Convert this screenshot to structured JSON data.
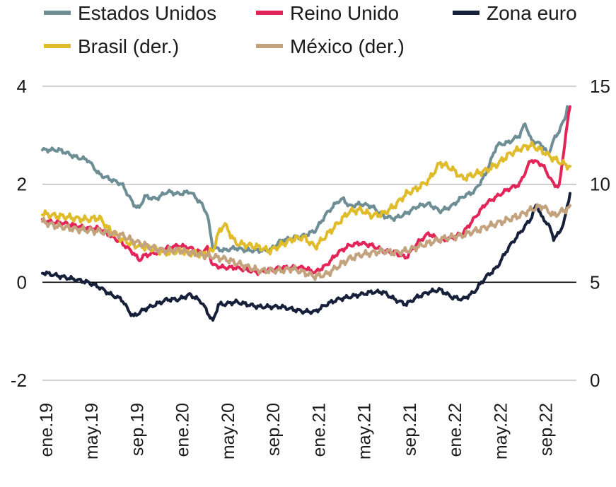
{
  "chart_data": {
    "type": "line",
    "title": "",
    "xlabel": "",
    "ylabel": "",
    "x_ticks": [
      "ene.19",
      "may.19",
      "sep.19",
      "ene.20",
      "may.20",
      "sep.20",
      "ene.21",
      "may.21",
      "sep.21",
      "ene.22",
      "may.22",
      "sep.22"
    ],
    "y_left": {
      "ticks": [
        "-2",
        "0",
        "2",
        "4"
      ],
      "lim": [
        -2,
        4
      ]
    },
    "y_right": {
      "ticks": [
        "0",
        "5",
        "10",
        "15"
      ],
      "lim": [
        0,
        15
      ]
    },
    "grid": true,
    "legend_position": "top",
    "series": [
      {
        "name": "Estados Unidos",
        "color": "#6e8e96",
        "axis": "left",
        "points": [
          [
            0,
            2.7
          ],
          [
            1.5,
            2.7
          ],
          [
            2.5,
            2.6
          ],
          [
            3.0,
            2.55
          ],
          [
            4.0,
            2.5
          ],
          [
            5.0,
            2.2
          ],
          [
            6.0,
            2.1
          ],
          [
            7.0,
            2.0
          ],
          [
            8.0,
            1.6
          ],
          [
            8.5,
            1.5
          ],
          [
            9.0,
            1.75
          ],
          [
            10.0,
            1.7
          ],
          [
            11.0,
            1.85
          ],
          [
            12.0,
            1.8
          ],
          [
            13.0,
            1.85
          ],
          [
            14.0,
            1.6
          ],
          [
            14.5,
            1.4
          ],
          [
            15.0,
            0.7
          ],
          [
            16.0,
            0.65
          ],
          [
            17.0,
            0.7
          ],
          [
            18.0,
            0.65
          ],
          [
            19.0,
            0.65
          ],
          [
            20.0,
            0.65
          ],
          [
            21.0,
            0.85
          ],
          [
            22.0,
            0.9
          ],
          [
            23.0,
            0.95
          ],
          [
            24.0,
            1.05
          ],
          [
            25.0,
            1.4
          ],
          [
            26.0,
            1.65
          ],
          [
            26.5,
            1.7
          ],
          [
            27.0,
            1.55
          ],
          [
            28.0,
            1.6
          ],
          [
            29.0,
            1.55
          ],
          [
            30.0,
            1.35
          ],
          [
            31.0,
            1.3
          ],
          [
            32.0,
            1.4
          ],
          [
            33.0,
            1.55
          ],
          [
            34.0,
            1.6
          ],
          [
            35.0,
            1.45
          ],
          [
            36.0,
            1.55
          ],
          [
            37.0,
            1.75
          ],
          [
            38.0,
            1.85
          ],
          [
            39.0,
            2.2
          ],
          [
            40.0,
            2.8
          ],
          [
            41.0,
            2.85
          ],
          [
            42.0,
            3.0
          ],
          [
            42.5,
            3.25
          ],
          [
            43.0,
            2.9
          ],
          [
            44.0,
            2.8
          ],
          [
            44.5,
            2.6
          ],
          [
            45.0,
            2.9
          ],
          [
            45.5,
            3.1
          ],
          [
            46.0,
            3.35
          ],
          [
            46.3,
            3.7
          ]
        ]
      },
      {
        "name": "Reino Unido",
        "color": "#e32458",
        "axis": "left",
        "points": [
          [
            0,
            1.25
          ],
          [
            2.0,
            1.2
          ],
          [
            3.0,
            1.15
          ],
          [
            4.0,
            1.1
          ],
          [
            5.0,
            1.1
          ],
          [
            6.0,
            0.95
          ],
          [
            7.0,
            0.8
          ],
          [
            8.0,
            0.6
          ],
          [
            8.5,
            0.45
          ],
          [
            9.0,
            0.55
          ],
          [
            10.0,
            0.6
          ],
          [
            11.0,
            0.7
          ],
          [
            12.0,
            0.75
          ],
          [
            13.0,
            0.7
          ],
          [
            14.0,
            0.6
          ],
          [
            14.5,
            0.7
          ],
          [
            15.0,
            0.35
          ],
          [
            16.0,
            0.3
          ],
          [
            17.0,
            0.3
          ],
          [
            18.0,
            0.25
          ],
          [
            19.0,
            0.2
          ],
          [
            20.0,
            0.25
          ],
          [
            21.0,
            0.3
          ],
          [
            22.0,
            0.3
          ],
          [
            23.0,
            0.3
          ],
          [
            24.0,
            0.2
          ],
          [
            25.0,
            0.35
          ],
          [
            26.0,
            0.6
          ],
          [
            27.0,
            0.75
          ],
          [
            28.0,
            0.8
          ],
          [
            29.0,
            0.75
          ],
          [
            30.0,
            0.65
          ],
          [
            31.0,
            0.6
          ],
          [
            32.0,
            0.5
          ],
          [
            33.0,
            0.8
          ],
          [
            34.0,
            1.0
          ],
          [
            35.0,
            0.85
          ],
          [
            36.0,
            0.9
          ],
          [
            37.0,
            1.0
          ],
          [
            38.0,
            1.3
          ],
          [
            39.0,
            1.6
          ],
          [
            40.0,
            1.75
          ],
          [
            41.0,
            1.9
          ],
          [
            42.0,
            2.0
          ],
          [
            42.5,
            2.25
          ],
          [
            43.0,
            2.5
          ],
          [
            44.0,
            2.4
          ],
          [
            44.5,
            2.2
          ],
          [
            45.0,
            2.0
          ],
          [
            45.5,
            1.95
          ],
          [
            46.0,
            2.9
          ],
          [
            46.5,
            3.7
          ]
        ]
      },
      {
        "name": "Zona euro",
        "color": "#17203a",
        "axis": "left",
        "points": [
          [
            0,
            0.2
          ],
          [
            1.0,
            0.15
          ],
          [
            2.0,
            0.1
          ],
          [
            3.0,
            0.05
          ],
          [
            4.0,
            0.0
          ],
          [
            5.0,
            -0.1
          ],
          [
            6.0,
            -0.25
          ],
          [
            7.0,
            -0.35
          ],
          [
            7.5,
            -0.55
          ],
          [
            8.0,
            -0.7
          ],
          [
            9.0,
            -0.55
          ],
          [
            10.0,
            -0.45
          ],
          [
            11.0,
            -0.35
          ],
          [
            12.0,
            -0.35
          ],
          [
            13.0,
            -0.25
          ],
          [
            14.0,
            -0.4
          ],
          [
            14.5,
            -0.6
          ],
          [
            15.0,
            -0.8
          ],
          [
            15.5,
            -0.45
          ],
          [
            16.0,
            -0.45
          ],
          [
            17.0,
            -0.4
          ],
          [
            18.0,
            -0.45
          ],
          [
            19.0,
            -0.5
          ],
          [
            20.0,
            -0.5
          ],
          [
            21.0,
            -0.5
          ],
          [
            22.0,
            -0.55
          ],
          [
            23.0,
            -0.6
          ],
          [
            24.0,
            -0.6
          ],
          [
            25.0,
            -0.45
          ],
          [
            26.0,
            -0.35
          ],
          [
            27.0,
            -0.3
          ],
          [
            28.0,
            -0.25
          ],
          [
            29.0,
            -0.2
          ],
          [
            30.0,
            -0.2
          ],
          [
            31.0,
            -0.35
          ],
          [
            32.0,
            -0.45
          ],
          [
            33.0,
            -0.3
          ],
          [
            34.0,
            -0.2
          ],
          [
            35.0,
            -0.15
          ],
          [
            36.0,
            -0.3
          ],
          [
            37.0,
            -0.35
          ],
          [
            38.0,
            -0.2
          ],
          [
            39.0,
            0.1
          ],
          [
            40.0,
            0.3
          ],
          [
            41.0,
            0.7
          ],
          [
            42.0,
            1.0
          ],
          [
            43.0,
            1.3
          ],
          [
            43.5,
            1.6
          ],
          [
            44.0,
            1.3
          ],
          [
            44.5,
            1.2
          ],
          [
            45.0,
            0.9
          ],
          [
            45.5,
            1.0
          ],
          [
            46.0,
            1.3
          ],
          [
            46.5,
            1.9
          ]
        ]
      },
      {
        "name": "Brasil (der.)",
        "color": "#e0bc2a",
        "axis": "right",
        "points": [
          [
            0,
            8.5
          ],
          [
            1.0,
            8.4
          ],
          [
            2.0,
            8.35
          ],
          [
            3.0,
            8.25
          ],
          [
            4.0,
            8.2
          ],
          [
            5.0,
            8.3
          ],
          [
            6.0,
            7.6
          ],
          [
            7.0,
            7.2
          ],
          [
            8.0,
            6.9
          ],
          [
            9.0,
            6.8
          ],
          [
            10.0,
            6.65
          ],
          [
            11.0,
            6.5
          ],
          [
            12.0,
            6.6
          ],
          [
            13.0,
            6.5
          ],
          [
            14.0,
            6.4
          ],
          [
            15.0,
            6.6
          ],
          [
            15.5,
            7.5
          ],
          [
            16.0,
            8.0
          ],
          [
            17.0,
            7.0
          ],
          [
            18.0,
            6.9
          ],
          [
            19.0,
            6.8
          ],
          [
            20.0,
            6.6
          ],
          [
            21.0,
            6.9
          ],
          [
            22.0,
            7.2
          ],
          [
            23.0,
            7.3
          ],
          [
            24.0,
            6.8
          ],
          [
            25.0,
            7.4
          ],
          [
            26.0,
            8.0
          ],
          [
            27.0,
            8.6
          ],
          [
            28.0,
            8.7
          ],
          [
            29.0,
            8.4
          ],
          [
            30.0,
            8.5
          ],
          [
            31.0,
            8.9
          ],
          [
            32.0,
            9.5
          ],
          [
            33.0,
            9.8
          ],
          [
            34.0,
            10.2
          ],
          [
            35.0,
            11.1
          ],
          [
            36.0,
            10.8
          ],
          [
            37.0,
            10.3
          ],
          [
            38.0,
            10.5
          ],
          [
            39.0,
            10.7
          ],
          [
            40.0,
            11.0
          ],
          [
            41.0,
            11.5
          ],
          [
            42.0,
            11.8
          ],
          [
            43.0,
            12.0
          ],
          [
            44.0,
            11.7
          ],
          [
            45.0,
            11.3
          ],
          [
            46.0,
            11.0
          ],
          [
            46.5,
            10.9
          ]
        ]
      },
      {
        "name": "México (der.)",
        "color": "#c3a37e",
        "axis": "right",
        "points": [
          [
            0,
            8.1
          ],
          [
            1.0,
            7.9
          ],
          [
            2.0,
            7.8
          ],
          [
            3.0,
            7.7
          ],
          [
            4.0,
            7.65
          ],
          [
            5.0,
            7.6
          ],
          [
            6.0,
            7.5
          ],
          [
            7.0,
            7.4
          ],
          [
            8.0,
            7.1
          ],
          [
            9.0,
            6.9
          ],
          [
            10.0,
            6.7
          ],
          [
            11.0,
            6.6
          ],
          [
            12.0,
            6.65
          ],
          [
            13.0,
            6.5
          ],
          [
            14.0,
            6.4
          ],
          [
            15.0,
            6.3
          ],
          [
            16.0,
            6.2
          ],
          [
            17.0,
            6.0
          ],
          [
            18.0,
            5.8
          ],
          [
            19.0,
            5.6
          ],
          [
            20.0,
            5.6
          ],
          [
            21.0,
            5.6
          ],
          [
            22.0,
            5.7
          ],
          [
            23.0,
            5.5
          ],
          [
            24.0,
            5.3
          ],
          [
            25.0,
            5.4
          ],
          [
            26.0,
            5.8
          ],
          [
            27.0,
            6.2
          ],
          [
            28.0,
            6.4
          ],
          [
            29.0,
            6.5
          ],
          [
            30.0,
            6.6
          ],
          [
            31.0,
            6.5
          ],
          [
            32.0,
            6.6
          ],
          [
            33.0,
            6.8
          ],
          [
            34.0,
            7.0
          ],
          [
            35.0,
            7.2
          ],
          [
            36.0,
            7.3
          ],
          [
            37.0,
            7.4
          ],
          [
            38.0,
            7.6
          ],
          [
            39.0,
            7.8
          ],
          [
            40.0,
            8.0
          ],
          [
            41.0,
            8.2
          ],
          [
            42.0,
            8.4
          ],
          [
            43.0,
            8.7
          ],
          [
            44.0,
            8.9
          ],
          [
            45.0,
            8.4
          ],
          [
            46.0,
            8.7
          ],
          [
            46.5,
            8.8
          ]
        ]
      }
    ]
  }
}
